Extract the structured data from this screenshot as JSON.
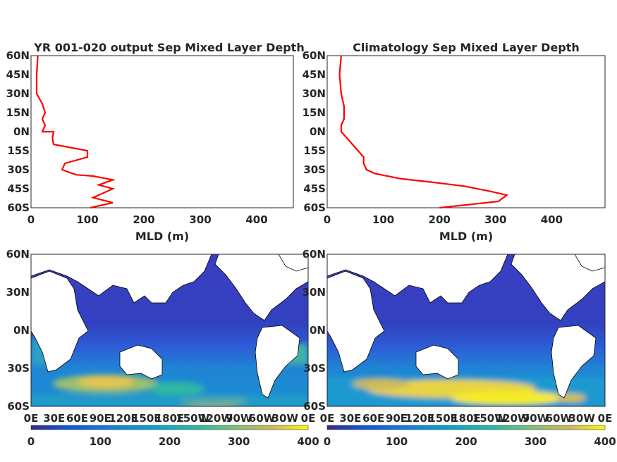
{
  "chart_data": [
    {
      "type": "line",
      "title": "YR 001-020 output Sep Mixed Layer Depth",
      "xlabel": "MLD (m)",
      "ylabel": "",
      "xlim": [
        0,
        465
      ],
      "ylim": [
        -60,
        60
      ],
      "xticks": [
        "0",
        "100",
        "200",
        "300",
        "400"
      ],
      "yticks": [
        "60N",
        "45N",
        "30N",
        "15N",
        "0N",
        "15S",
        "30S",
        "45S",
        "60S"
      ],
      "line_color": "#ff0000",
      "series": [
        {
          "x": [
            105,
            145,
            110,
            145,
            120,
            145,
            110,
            80,
            55,
            60,
            100,
            100,
            40,
            38,
            40,
            20,
            25,
            20,
            25,
            20,
            10,
            10,
            12
          ],
          "y": [
            -60,
            -56,
            -52,
            -45,
            -42,
            -38,
            -35,
            -34,
            -30,
            -25,
            -20,
            -15,
            -10,
            -5,
            0,
            0,
            5,
            10,
            15,
            22,
            30,
            45,
            60
          ]
        }
      ]
    },
    {
      "type": "line",
      "title": "Climatology Sep Mixed Layer Depth",
      "xlabel": "MLD (m)",
      "ylabel": "",
      "xlim": [
        0,
        495
      ],
      "ylim": [
        -60,
        60
      ],
      "xticks": [
        "0",
        "100",
        "200",
        "300",
        "400"
      ],
      "yticks": [
        "60N",
        "45N",
        "30N",
        "15N",
        "0N",
        "15S",
        "30S",
        "45S",
        "60S"
      ],
      "line_color": "#ff0000",
      "series": [
        {
          "x": [
            200,
            305,
            320,
            290,
            245,
            190,
            130,
            85,
            70,
            65,
            65,
            55,
            45,
            35,
            25,
            25,
            30,
            30,
            25,
            22,
            25
          ],
          "y": [
            -60,
            -55,
            -50,
            -47,
            -43,
            -40,
            -37,
            -33,
            -30,
            -25,
            -20,
            -15,
            -10,
            -5,
            0,
            5,
            10,
            20,
            30,
            45,
            60
          ]
        }
      ]
    },
    {
      "type": "heatmap",
      "xticks": [
        "0E",
        "30E",
        "60E",
        "90E",
        "120E",
        "150E",
        "180E",
        "150W",
        "120W",
        "90W",
        "60W",
        "30W",
        "0E"
      ],
      "yticks": [
        "60N",
        "30N",
        "0N",
        "30S",
        "60S"
      ],
      "colorbar": {
        "min": 0,
        "max": 400,
        "ticks": [
          "0",
          "100",
          "200",
          "300",
          "400"
        ]
      }
    },
    {
      "type": "heatmap",
      "xticks": [
        "0E",
        "30E",
        "60E",
        "90E",
        "120E",
        "150E",
        "180E",
        "150W",
        "120W",
        "90W",
        "60W",
        "30W",
        "0E"
      ],
      "yticks": [
        "60N",
        "30N",
        "0N",
        "30S",
        "60S"
      ],
      "colorbar": {
        "min": 0,
        "max": 400,
        "ticks": [
          "0",
          "100",
          "200",
          "300",
          "400"
        ]
      }
    }
  ]
}
